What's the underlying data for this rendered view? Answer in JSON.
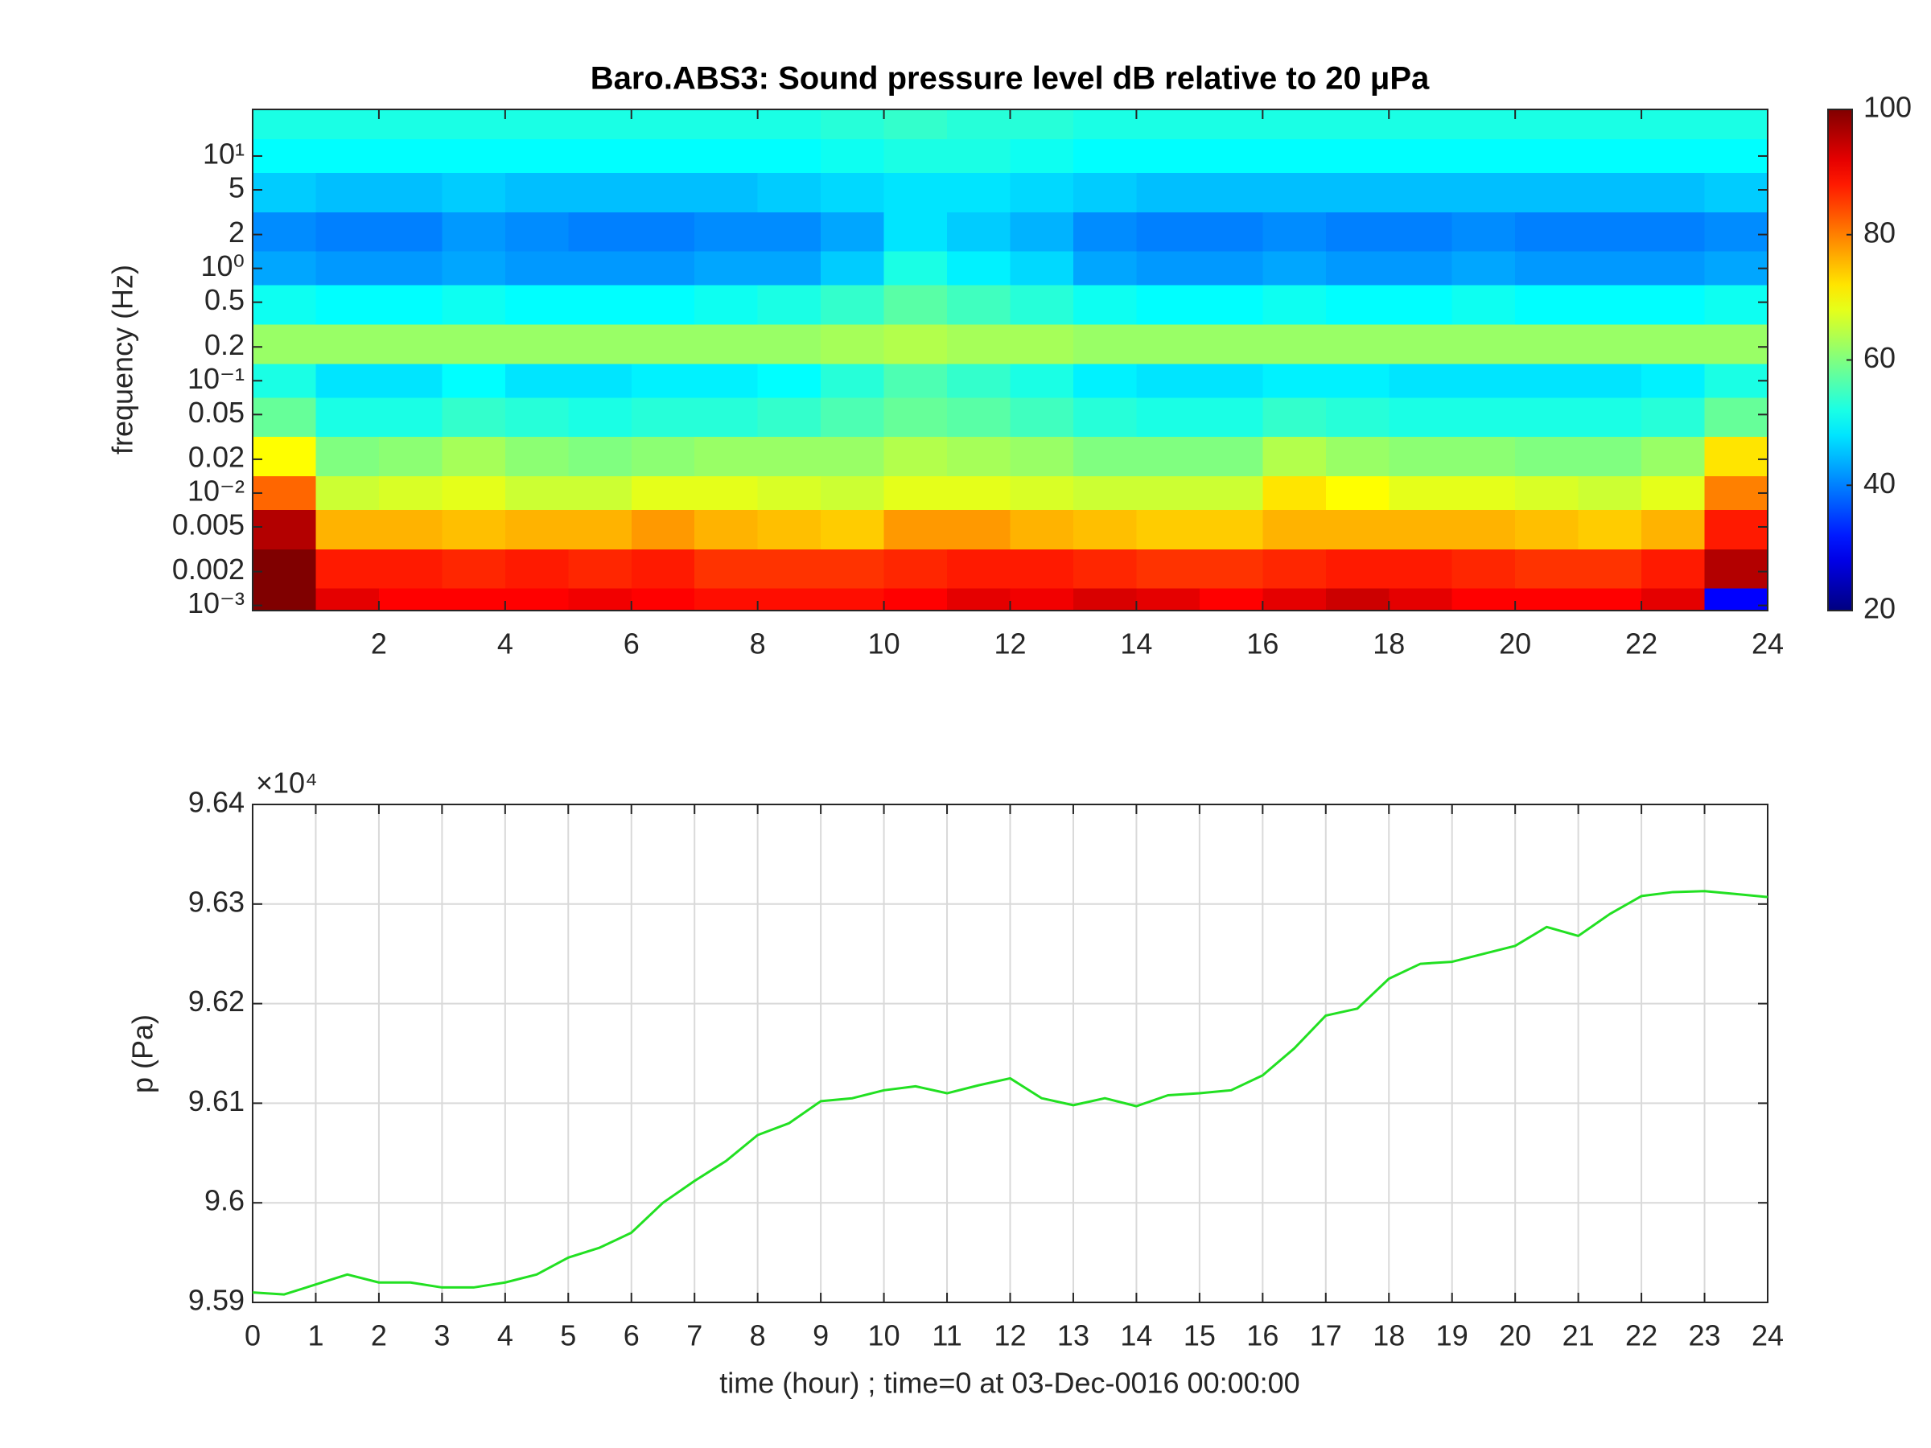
{
  "chart_data": [
    {
      "type": "heatmap",
      "title": "Baro.ABS3: Sound pressure level dB relative to 20 μPa",
      "ylabel": "frequency (Hz)",
      "ylog": true,
      "colormap": "jet",
      "xlim": [
        0,
        24
      ],
      "xticks": [
        2,
        4,
        6,
        8,
        10,
        12,
        14,
        16,
        18,
        20,
        22,
        24
      ],
      "ylim": [
        0.0009,
        26
      ],
      "yticks": [
        {
          "value": 10,
          "label": "10¹"
        },
        5,
        2,
        {
          "value": 1,
          "label": "10⁰"
        },
        0.5,
        0.2,
        {
          "value": 0.1,
          "label": "10⁻¹"
        },
        0.05,
        0.02,
        {
          "value": 0.01,
          "label": "10⁻²"
        },
        0.005,
        0.002,
        {
          "value": 0.001,
          "label": "10⁻³"
        }
      ],
      "clim": [
        20,
        100
      ],
      "cticks": [
        20,
        40,
        60,
        80,
        100
      ],
      "x": [
        0.5,
        1.5,
        2.5,
        3.5,
        4.5,
        5.5,
        6.5,
        7.5,
        8.5,
        9.5,
        10.5,
        11.5,
        12.5,
        13.5,
        14.5,
        15.5,
        16.5,
        17.5,
        18.5,
        19.5,
        20.5,
        21.5,
        22.5,
        23.5
      ],
      "y": [
        20,
        10,
        5,
        2,
        1,
        0.5,
        0.2,
        0.1,
        0.05,
        0.02,
        0.01,
        0.005,
        0.002,
        0.001
      ],
      "z": [
        [
          52,
          52,
          52,
          52,
          52,
          52,
          52,
          52,
          52,
          53,
          54,
          53,
          53,
          52,
          52,
          52,
          52,
          52,
          52,
          52,
          52,
          52,
          52,
          52
        ],
        [
          50,
          50,
          50,
          50,
          50,
          50,
          50,
          50,
          50,
          51,
          52,
          52,
          51,
          50,
          50,
          50,
          50,
          50,
          50,
          50,
          50,
          50,
          50,
          50
        ],
        [
          46,
          45,
          45,
          46,
          45,
          45,
          45,
          45,
          46,
          47,
          48,
          48,
          47,
          46,
          45,
          45,
          45,
          45,
          45,
          45,
          45,
          45,
          45,
          46
        ],
        [
          41,
          40,
          40,
          42,
          41,
          40,
          40,
          41,
          41,
          43,
          48,
          46,
          44,
          41,
          40,
          40,
          41,
          40,
          40,
          41,
          40,
          40,
          40,
          41
        ],
        [
          43,
          42,
          42,
          43,
          42,
          42,
          42,
          43,
          43,
          46,
          52,
          49,
          47,
          43,
          42,
          42,
          43,
          42,
          42,
          43,
          42,
          42,
          42,
          43
        ],
        [
          51,
          50,
          50,
          51,
          50,
          50,
          50,
          51,
          52,
          54,
          57,
          55,
          53,
          51,
          50,
          50,
          51,
          50,
          50,
          51,
          50,
          50,
          50,
          51
        ],
        [
          62,
          62,
          62,
          62,
          62,
          62,
          62,
          62,
          62,
          63,
          64,
          63,
          63,
          62,
          62,
          62,
          62,
          62,
          62,
          62,
          62,
          62,
          62,
          62
        ],
        [
          52,
          48,
          48,
          50,
          48,
          48,
          49,
          49,
          50,
          53,
          56,
          54,
          52,
          49,
          48,
          48,
          49,
          49,
          48,
          48,
          48,
          48,
          49,
          52
        ],
        [
          58,
          52,
          52,
          54,
          53,
          52,
          53,
          53,
          54,
          56,
          58,
          57,
          55,
          53,
          52,
          52,
          54,
          53,
          52,
          52,
          52,
          52,
          53,
          58
        ],
        [
          70,
          60,
          61,
          63,
          61,
          60,
          61,
          62,
          62,
          62,
          64,
          63,
          62,
          60,
          60,
          60,
          64,
          62,
          61,
          61,
          60,
          60,
          62,
          72
        ],
        [
          82,
          66,
          67,
          68,
          66,
          66,
          68,
          68,
          67,
          66,
          68,
          68,
          67,
          66,
          66,
          66,
          72,
          70,
          68,
          68,
          67,
          66,
          68,
          80
        ],
        [
          96,
          76,
          76,
          75,
          76,
          76,
          78,
          76,
          75,
          74,
          78,
          78,
          76,
          75,
          74,
          74,
          76,
          76,
          76,
          76,
          75,
          74,
          76,
          88
        ],
        [
          100,
          88,
          88,
          87,
          88,
          87,
          88,
          86,
          86,
          86,
          87,
          88,
          88,
          87,
          86,
          86,
          87,
          88,
          88,
          87,
          86,
          86,
          88,
          96
        ],
        [
          100,
          92,
          90,
          90,
          90,
          91,
          90,
          89,
          89,
          89,
          90,
          92,
          91,
          93,
          92,
          90,
          92,
          94,
          92,
          90,
          90,
          90,
          92,
          30
        ]
      ]
    },
    {
      "type": "line",
      "xlabel": "time (hour) ; time=0 at 03-Dec-0016 00:00:00",
      "ylabel": "p (Pa)",
      "y_multiplier": "×10⁴",
      "grid": true,
      "color": "#22e022",
      "xlim": [
        0,
        24
      ],
      "xticks": [
        0,
        1,
        2,
        3,
        4,
        5,
        6,
        7,
        8,
        9,
        10,
        11,
        12,
        13,
        14,
        15,
        16,
        17,
        18,
        19,
        20,
        21,
        22,
        23,
        24
      ],
      "ylim": [
        9.59,
        9.64
      ],
      "yticks": [
        9.59,
        9.6,
        9.61,
        9.62,
        9.63,
        9.64
      ],
      "x": [
        0,
        0.5,
        1,
        1.5,
        2,
        2.5,
        3,
        3.5,
        4,
        4.5,
        5,
        5.5,
        6,
        6.5,
        7,
        7.5,
        8,
        8.5,
        9,
        9.5,
        10,
        10.5,
        11,
        11.5,
        12,
        12.5,
        13,
        13.5,
        14,
        14.5,
        15,
        15.5,
        16,
        16.5,
        17,
        17.5,
        18,
        18.5,
        19,
        19.5,
        20,
        20.5,
        21,
        21.5,
        22,
        22.5,
        23,
        23.5,
        24
      ],
      "values": [
        9.591,
        9.5908,
        9.5918,
        9.5928,
        9.592,
        9.592,
        9.5915,
        9.5915,
        9.592,
        9.5928,
        9.5945,
        9.5955,
        9.597,
        9.6,
        9.6022,
        9.6042,
        9.6068,
        9.608,
        9.6102,
        9.6105,
        9.6113,
        9.6117,
        9.611,
        9.6118,
        9.6125,
        9.6105,
        9.6098,
        9.6105,
        9.6097,
        9.6108,
        9.611,
        9.6113,
        9.6128,
        9.6155,
        9.6188,
        9.6195,
        9.6225,
        9.624,
        9.6242,
        9.625,
        9.6258,
        9.6277,
        9.6268,
        9.629,
        9.6308,
        9.6312,
        9.6313,
        9.631,
        9.6307
      ]
    }
  ]
}
